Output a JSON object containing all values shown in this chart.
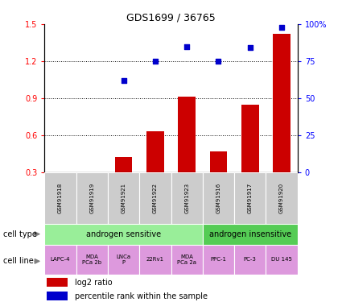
{
  "title": "GDS1699 / 36765",
  "samples": [
    "GSM91918",
    "GSM91919",
    "GSM91921",
    "GSM91922",
    "GSM91923",
    "GSM91916",
    "GSM91917",
    "GSM91920"
  ],
  "log2_ratio": [
    0.0,
    0.0,
    0.42,
    0.63,
    0.91,
    0.47,
    0.85,
    1.42
  ],
  "pct_rank_pct": [
    null,
    null,
    62,
    75,
    85,
    75,
    84,
    98
  ],
  "bar_color": "#cc0000",
  "dot_color": "#0000cc",
  "cell_type_sensitive": "androgen sensitive",
  "cell_type_insensitive": "androgen insensitive",
  "sensitive_count": 5,
  "insensitive_count": 3,
  "cell_lines": [
    "LAPC-4",
    "MDA\nPCa 2b",
    "LNCa\nP",
    "22Rv1",
    "MDA\nPCa 2a",
    "PPC-1",
    "PC-3",
    "DU 145"
  ],
  "cell_type_sensitive_color": "#99ee99",
  "cell_type_insensitive_color": "#55cc55",
  "cell_line_color": "#dd99dd",
  "gsm_bg_color": "#cccccc",
  "ylim_left": [
    0.3,
    1.5
  ],
  "ylim_right": [
    0,
    100
  ],
  "yticks_left": [
    0.3,
    0.6,
    0.9,
    1.2,
    1.5
  ],
  "yticks_right": [
    0,
    25,
    50,
    75,
    100
  ],
  "legend_log2": "log2 ratio",
  "legend_pct": "percentile rank within the sample"
}
